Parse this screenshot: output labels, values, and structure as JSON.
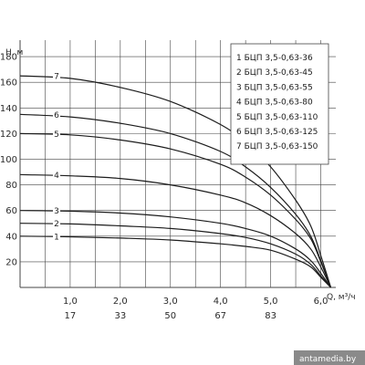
{
  "chart_data": {
    "type": "line",
    "title": "",
    "ylabel": "H, м",
    "xlabel": "Q, м³/ч",
    "ylim": [
      0,
      190
    ],
    "xlim": [
      0,
      6.3
    ],
    "grid": true,
    "legend_position": "top-right",
    "y_ticks": [
      {
        "value": 20,
        "label": "20"
      },
      {
        "value": 40,
        "label": "40"
      },
      {
        "value": 60,
        "label": "60"
      },
      {
        "value": 80,
        "label": "80"
      },
      {
        "value": 100,
        "label": "100"
      },
      {
        "value": 120,
        "label": "120"
      },
      {
        "value": 140,
        "label": "140"
      },
      {
        "value": 160,
        "label": "160"
      },
      {
        "value": 180,
        "label": "180"
      }
    ],
    "x_ticks": [
      {
        "value": 1.0,
        "label": "1,0",
        "label2": "17"
      },
      {
        "value": 2.0,
        "label": "2,0",
        "label2": "33"
      },
      {
        "value": 3.0,
        "label": "3,0",
        "label2": "50"
      },
      {
        "value": 4.0,
        "label": "4,0",
        "label2": "67"
      },
      {
        "value": 5.0,
        "label": "5,0",
        "label2": "83"
      },
      {
        "value": 6.0,
        "label": "6,0",
        "label2": ""
      }
    ],
    "series": [
      {
        "name": "1 БЦП 3,5-0,63-36",
        "tag": "1",
        "x": [
          0,
          1,
          2,
          3,
          4,
          4.5,
          5,
          5.5,
          5.8,
          6.0,
          6.2
        ],
        "y": [
          40,
          39.5,
          38.5,
          37,
          34,
          32,
          29,
          22,
          16,
          8,
          0
        ]
      },
      {
        "name": "2 БЦП 3,5-0,63-45",
        "tag": "2",
        "x": [
          0,
          1,
          2,
          3,
          4,
          4.5,
          5,
          5.5,
          5.8,
          6.0,
          6.2
        ],
        "y": [
          50,
          49.5,
          48,
          46,
          42,
          39,
          34,
          26,
          18,
          9,
          0
        ]
      },
      {
        "name": "3 БЦП 3,5-0,63-55",
        "tag": "3",
        "x": [
          0,
          1,
          2,
          3,
          4,
          4.5,
          5,
          5.5,
          5.8,
          6.0,
          6.2
        ],
        "y": [
          60,
          59.5,
          58,
          55,
          50,
          46,
          40,
          30,
          21,
          11,
          0
        ]
      },
      {
        "name": "4 БЦП 3,5-0,63-80",
        "tag": "4",
        "x": [
          0,
          1,
          2,
          3,
          4,
          4.5,
          5,
          5.5,
          5.8,
          6.0,
          6.2
        ],
        "y": [
          88,
          87,
          85,
          80,
          72,
          66,
          56,
          42,
          30,
          16,
          0
        ]
      },
      {
        "name": "5 БЦП 3,5-0,63-110",
        "tag": "5",
        "x": [
          0,
          1,
          2,
          3,
          4,
          4.5,
          5,
          5.5,
          5.8,
          6.0,
          6.2
        ],
        "y": [
          120,
          119,
          115,
          108,
          96,
          86,
          72,
          53,
          38,
          20,
          0
        ]
      },
      {
        "name": "6 БЦП 3,5-0,63-125",
        "tag": "6",
        "x": [
          0,
          1,
          2,
          3,
          4,
          4.5,
          5,
          5.5,
          5.8,
          6.0,
          6.2
        ],
        "y": [
          135,
          133,
          128,
          120,
          106,
          94,
          78,
          57,
          40,
          21,
          0
        ]
      },
      {
        "name": "7 БЦП 3,5-0,63-150",
        "tag": "7",
        "x": [
          0,
          1,
          2,
          3,
          4,
          4.5,
          5,
          5.5,
          5.8,
          6.0,
          6.2
        ],
        "y": [
          165,
          163,
          156,
          145,
          127,
          113,
          94,
          68,
          48,
          25,
          0
        ]
      }
    ],
    "colors": {
      "line": "#1c1c1c",
      "grid": "#444444",
      "label_bg": "#ffffff",
      "watermark_bg": "#8a8a8a",
      "watermark_text": "#ffffff"
    }
  },
  "watermark": {
    "text": "antamedia.by"
  }
}
